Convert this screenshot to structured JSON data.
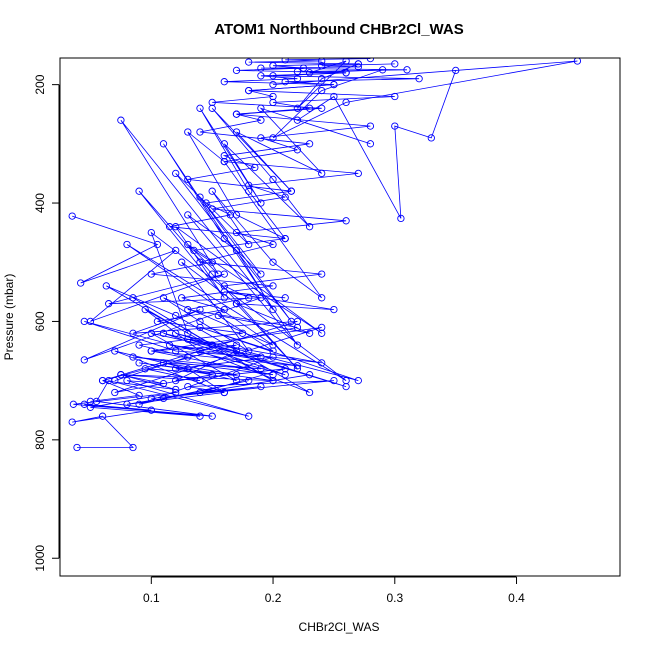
{
  "chart_data": {
    "type": "line",
    "title": "ATOM1 Northbound CHBr2Cl_WAS",
    "xlabel": "CHBr2Cl_WAS",
    "ylabel": "Pressure (mbar)",
    "xlim": [
      0.025,
      0.485
    ],
    "ylim": [
      1030,
      155
    ],
    "y_reversed": true,
    "x_ticks": [
      0.1,
      0.2,
      0.3,
      0.4
    ],
    "x_tick_labels": [
      "0.1",
      "0.2",
      "0.3",
      "0.4"
    ],
    "y_ticks": [
      200,
      400,
      600,
      800,
      1000
    ],
    "y_tick_labels": [
      "200",
      "400",
      "600",
      "800",
      "1000"
    ],
    "grid": false,
    "legend": "none",
    "marker": "open-circle",
    "series_color": "#0000ff",
    "series": [
      {
        "x": [
          0.039,
          0.085,
          0.06,
          0.035,
          0.1,
          0.045,
          0.14,
          0.05,
          0.12,
          0.036,
          0.15,
          0.055,
          0.065,
          0.18,
          0.08,
          0.11,
          0.075,
          0.2,
          0.09,
          0.13,
          0.16,
          0.07,
          0.17,
          0.1,
          0.19,
          0.12,
          0.045,
          0.21,
          0.11,
          0.15,
          0.085,
          0.2,
          0.095,
          0.14,
          0.23,
          0.12,
          0.063,
          0.13,
          0.1,
          0.26,
          0.08,
          0.2,
          0.11,
          0.14,
          0.18,
          0.125,
          0.17,
          0.22,
          0.15,
          0.09,
          0.16,
          0.12,
          0.24,
          0.13,
          0.155,
          0.075,
          0.2,
          0.17,
          0.13,
          0.22,
          0.11,
          0.16,
          0.19,
          0.14,
          0.215,
          0.12,
          0.18,
          0.15,
          0.2,
          0.24,
          0.16,
          0.13,
          0.17,
          0.21,
          0.18,
          0.14,
          0.19,
          0.16,
          0.23,
          0.2,
          0.15,
          0.215,
          0.17,
          0.24,
          0.19,
          0.28,
          0.22,
          0.25,
          0.305,
          0.3,
          0.33,
          0.35,
          0.2,
          0.45,
          0.26,
          0.2,
          0.24,
          0.29,
          0.23,
          0.26,
          0.22,
          0.24,
          0.27
        ],
        "y": [
          813,
          813,
          760,
          770,
          750,
          740,
          760,
          745,
          720,
          740,
          760,
          735,
          700,
          760,
          700,
          705,
          690,
          700,
          670,
          680,
          720,
          650,
          700,
          620,
          660,
          650,
          600,
          690,
          620,
          640,
          560,
          700,
          580,
          650,
          720,
          590,
          540,
          620,
          450,
          700,
          470,
          640,
          560,
          600,
          650,
          500,
          570,
          680,
          520,
          380,
          560,
          440,
          620,
          470,
          520,
          260,
          580,
          480,
          420,
          640,
          300,
          460,
          520,
          390,
          600,
          350,
          470,
          380,
          500,
          560,
          330,
          280,
          420,
          460,
          380,
          240,
          400,
          300,
          440,
          360,
          240,
          380,
          280,
          350,
          240,
          300,
          260,
          220,
          426,
          270,
          290,
          176,
          200,
          160,
          230,
          290,
          210,
          175,
          180,
          160,
          240,
          190,
          165
        ]
      },
      {
        "x": [
          0.035,
          0.105,
          0.042,
          0.12,
          0.05,
          0.16,
          0.065,
          0.19,
          0.045,
          0.14,
          0.085,
          0.22,
          0.06,
          0.17,
          0.1,
          0.24,
          0.07,
          0.15,
          0.12,
          0.2,
          0.09,
          0.18,
          0.11,
          0.23,
          0.08,
          0.16,
          0.13,
          0.25,
          0.1,
          0.19,
          0.14,
          0.21,
          0.12,
          0.17,
          0.15,
          0.22,
          0.13,
          0.18,
          0.16,
          0.24,
          0.14,
          0.2,
          0.17,
          0.26,
          0.15,
          0.21,
          0.18,
          0.27,
          0.16,
          0.22,
          0.19,
          0.28,
          0.17,
          0.23,
          0.2,
          0.3,
          0.18,
          0.25,
          0.21,
          0.32,
          0.2,
          0.26,
          0.22,
          0.31,
          0.19,
          0.27,
          0.24,
          0.3
        ],
        "y": [
          422,
          470,
          535,
          480,
          600,
          520,
          570,
          560,
          665,
          580,
          620,
          600,
          700,
          640,
          650,
          610,
          720,
          690,
          680,
          660,
          740,
          700,
          730,
          690,
          740,
          720,
          710,
          700,
          730,
          710,
          720,
          680,
          700,
          650,
          640,
          610,
          580,
          560,
          540,
          520,
          500,
          470,
          450,
          430,
          410,
          390,
          370,
          350,
          330,
          310,
          290,
          270,
          250,
          240,
          230,
          220,
          210,
          200,
          195,
          190,
          185,
          180,
          178,
          175,
          172,
          170,
          168,
          165
        ]
      },
      {
        "x": [
          0.07,
          0.13,
          0.09,
          0.175,
          0.105,
          0.16,
          0.125,
          0.2,
          0.1,
          0.15,
          0.135,
          0.21,
          0.115,
          0.165,
          0.145,
          0.215,
          0.13,
          0.185,
          0.16,
          0.23,
          0.14,
          0.19,
          0.17,
          0.24,
          0.15,
          0.2,
          0.18,
          0.25,
          0.16,
          0.22,
          0.19,
          0.26,
          0.17,
          0.225,
          0.2,
          0.27,
          0.18,
          0.24,
          0.21,
          0.28
        ],
        "y": [
          700,
          660,
          640,
          620,
          600,
          580,
          560,
          540,
          520,
          500,
          480,
          460,
          440,
          420,
          400,
          380,
          360,
          340,
          320,
          300,
          280,
          260,
          250,
          240,
          230,
          220,
          210,
          200,
          195,
          190,
          185,
          180,
          176,
          172,
          168,
          165,
          162,
          160,
          158,
          156
        ]
      },
      {
        "x": [
          0.05,
          0.09,
          0.06,
          0.12,
          0.075,
          0.14,
          0.095,
          0.17,
          0.11,
          0.19,
          0.085,
          0.2,
          0.1,
          0.22,
          0.115,
          0.24,
          0.13,
          0.26,
          0.12,
          0.27,
          0.14,
          0.2,
          0.155,
          0.23,
          0.17,
          0.25,
          0.16,
          0.21
        ],
        "y": [
          735,
          725,
          700,
          715,
          690,
          700,
          680,
          690,
          670,
          680,
          660,
          690,
          650,
          675,
          640,
          670,
          630,
          710,
          620,
          700,
          610,
          650,
          590,
          620,
          570,
          580,
          550,
          560
        ]
      }
    ]
  }
}
